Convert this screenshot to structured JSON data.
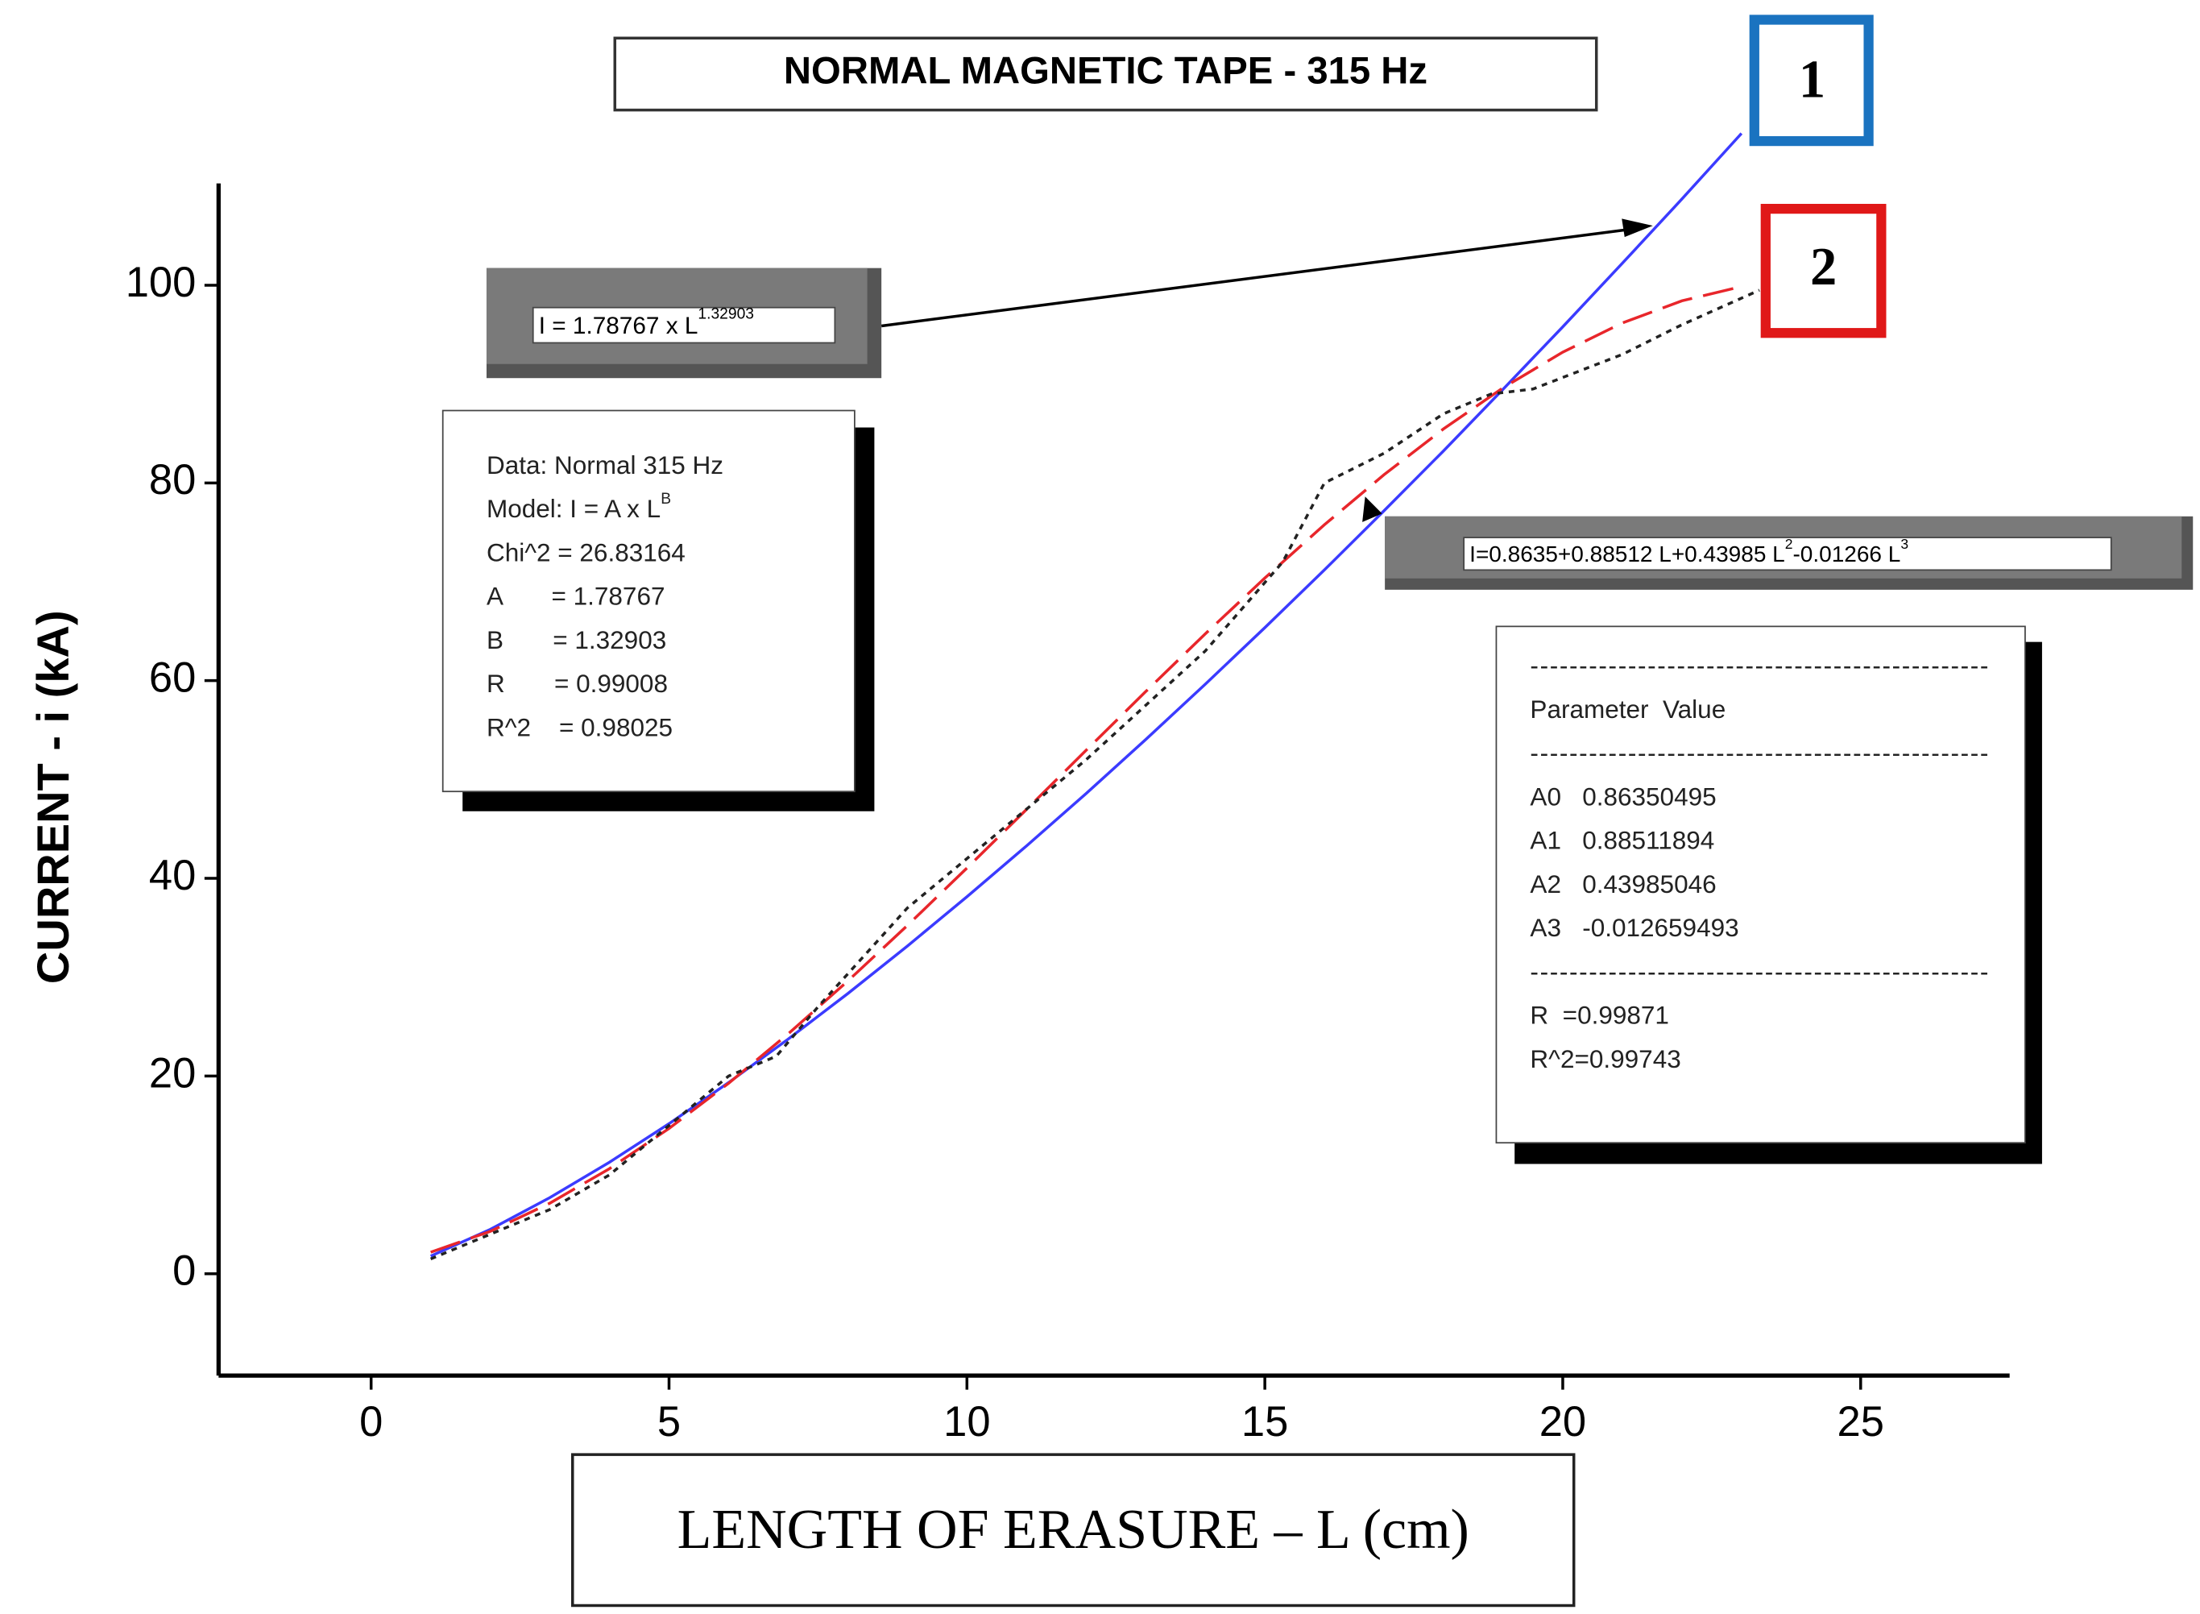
{
  "chart_data": {
    "type": "line",
    "title": "NORMAL MAGNETIC TAPE - 315 Hz",
    "x_label": "LENGTH OF ERASURE – L (cm)",
    "y_label": "CURRENT - i (kA)",
    "xlim": [
      -2.56,
      27.5
    ],
    "ylim": [
      -10.3,
      110.3
    ],
    "xticks": [
      0,
      5,
      10,
      15,
      20,
      25
    ],
    "yticks": [
      0,
      20,
      40,
      60,
      80,
      100
    ],
    "series": [
      {
        "name": "1",
        "color": "#3b3bff",
        "style": "solid",
        "x": [
          1,
          2,
          3,
          4,
          5,
          6,
          7,
          8,
          9,
          10,
          11,
          12,
          13,
          14,
          15,
          16,
          17,
          18,
          19,
          20,
          21,
          22,
          23
        ],
        "values": [
          1.79,
          4.49,
          7.7,
          11.28,
          15.18,
          19.34,
          23.74,
          28.34,
          33.15,
          38.14,
          43.28,
          48.58,
          54.04,
          59.64,
          65.36,
          71.2,
          77.18,
          83.25,
          89.49,
          95.79,
          102.22,
          108.72,
          115.36
        ]
      },
      {
        "name": "2",
        "color": "#e8262b",
        "style": "dashed",
        "x": [
          1,
          2,
          3,
          4,
          5,
          6,
          7,
          8,
          9,
          10,
          11,
          12,
          13,
          14,
          15,
          16,
          17,
          18,
          19,
          20,
          21,
          22,
          23
        ],
        "values": [
          2.18,
          4.29,
          7.14,
          10.63,
          14.7,
          19.27,
          24.27,
          29.61,
          35.23,
          41.04,
          46.97,
          52.95,
          58.89,
          64.73,
          70.38,
          75.77,
          80.83,
          85.47,
          89.63,
          93.23,
          96.18,
          98.42,
          99.87
        ]
      },
      {
        "color": "#222222",
        "style": "dotted",
        "x": [
          1,
          2,
          3,
          4,
          5,
          6,
          6.8,
          7.5,
          9,
          10,
          12,
          14,
          15.3,
          16,
          17,
          18,
          18.8,
          19.5,
          21,
          22,
          23.3
        ],
        "values": [
          1.5,
          4,
          6.5,
          10,
          15,
          20,
          22,
          27,
          37,
          42,
          52,
          63,
          72,
          80,
          83,
          87,
          89,
          89.5,
          93,
          96,
          99.5
        ]
      }
    ],
    "power_fit_label": {
      "text": "I = 1.78767 x L",
      "exponent": "1.32903"
    },
    "power_fit_stats": [
      "Data: Normal 315 Hz",
      {
        "text": "Model: I = A x L",
        "exponent": "B"
      },
      "Chi^2 = 26.83164",
      "A       = 1.78767",
      "B       = 1.32903",
      "R       = 0.99008",
      "R^2    = 0.98025"
    ],
    "poly_fit_label": {
      "parts": [
        "I=0.8635+0.88512 L+0.43985 L",
        "2",
        "-0.01266 L",
        "3"
      ]
    },
    "poly_fit_stats": [
      "-----------------------------------------------",
      "Parameter  Value",
      "-----------------------------------------------",
      "A0   0.86350495",
      "A1   0.88511894",
      "A2   0.43985046",
      "A3   -0.012659493",
      "-----------------------------------------------",
      "R  =0.99871",
      "R^2=0.99743"
    ]
  }
}
